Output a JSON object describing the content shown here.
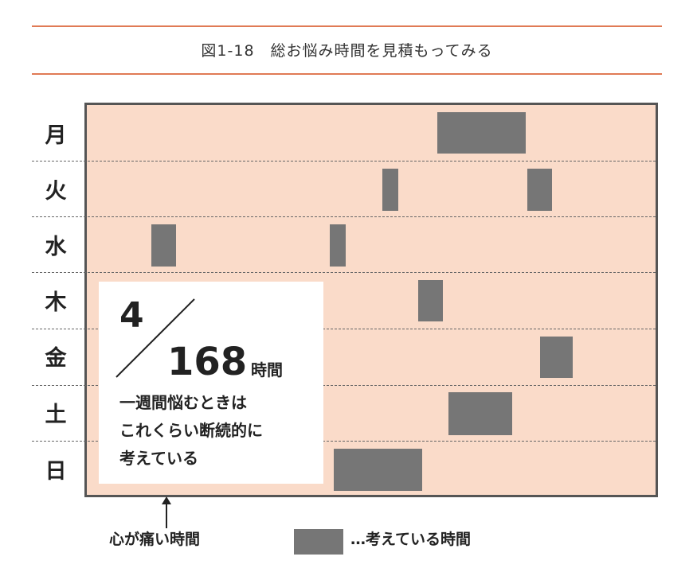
{
  "title": "図1-18　総お悩み時間を見積もってみる",
  "days": [
    "月",
    "火",
    "水",
    "木",
    "金",
    "土",
    "日"
  ],
  "summary": {
    "thinking_hours": "4",
    "total_hours": "168",
    "unit": "時間",
    "description": [
      "一週間悩むときは",
      "これくらい断続的に",
      "考えている"
    ]
  },
  "arrow_label": "心が痛い時間",
  "legend_label": "…考えている時間",
  "colors": {
    "rule": "#e07a55",
    "background": "#fadbc9",
    "block": "#767676",
    "border": "#555555"
  }
}
